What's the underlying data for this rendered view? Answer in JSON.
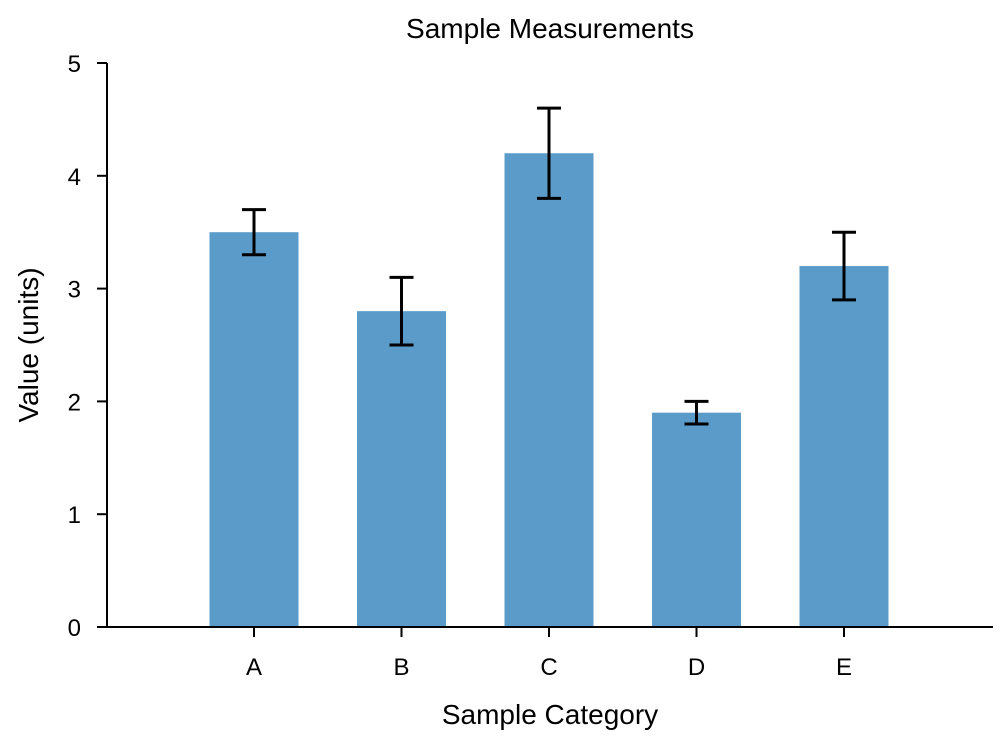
{
  "chart_data": {
    "type": "bar",
    "title": "Sample Measurements",
    "xlabel": "Sample Category",
    "ylabel": "Value (units)",
    "categories": [
      "A",
      "B",
      "C",
      "D",
      "E"
    ],
    "values": [
      3.5,
      2.8,
      4.2,
      1.9,
      3.2
    ],
    "errors": [
      0.2,
      0.3,
      0.4,
      0.1,
      0.3
    ],
    "ylim": [
      0,
      5
    ],
    "yticks": [
      0,
      1,
      2,
      3,
      4,
      5
    ],
    "grid": false,
    "legend": "none",
    "bar_color": "#5b9bc9",
    "error_color": "#000000"
  }
}
